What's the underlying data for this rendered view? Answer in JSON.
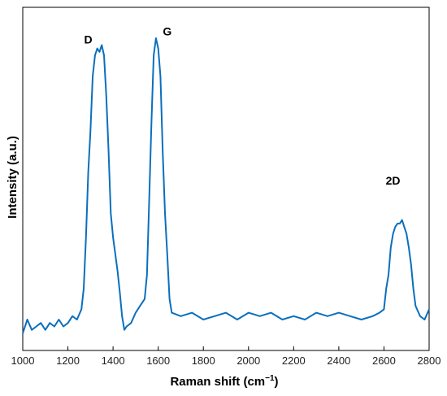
{
  "chart_data": {
    "type": "line",
    "title": "",
    "xlabel": "Raman shift (cm",
    "xlabel_superscript": "−1",
    "xlabel_close": ")",
    "ylabel": "Intensity (a.u.)",
    "xlim": [
      1000,
      2800
    ],
    "ylim": [
      0,
      1
    ],
    "x_ticks": [
      1000,
      1200,
      1400,
      1600,
      1800,
      2000,
      2200,
      2400,
      2600,
      2800
    ],
    "y_ticks_visible": false,
    "grid": false,
    "legend": "none",
    "line_color": "#0a6fbd",
    "annotations": [
      {
        "text": "D",
        "x": 1290,
        "y": 0.895
      },
      {
        "text": "G",
        "x": 1640,
        "y": 0.918
      },
      {
        "text": "2D",
        "x": 2640,
        "y": 0.484
      }
    ],
    "series": [
      {
        "x": [
          1000,
          1020,
          1040,
          1060,
          1080,
          1100,
          1120,
          1140,
          1160,
          1180,
          1200,
          1220,
          1240,
          1260,
          1270,
          1280,
          1290,
          1300,
          1310,
          1320,
          1330,
          1340,
          1350,
          1360,
          1370,
          1380,
          1390,
          1400,
          1410,
          1420,
          1430,
          1440,
          1450,
          1460,
          1480,
          1500,
          1520,
          1540,
          1550,
          1560,
          1570,
          1580,
          1590,
          1600,
          1610,
          1620,
          1630,
          1640,
          1650,
          1660,
          1700,
          1750,
          1800,
          1850,
          1900,
          1950,
          2000,
          2050,
          2100,
          2150,
          2200,
          2250,
          2300,
          2350,
          2400,
          2450,
          2500,
          2550,
          2580,
          2600,
          2610,
          2620,
          2630,
          2640,
          2650,
          2660,
          2670,
          2680,
          2690,
          2700,
          2710,
          2720,
          2730,
          2740,
          2760,
          2780,
          2800
        ],
        "y": [
          0.05,
          0.09,
          0.06,
          0.07,
          0.08,
          0.06,
          0.08,
          0.07,
          0.09,
          0.07,
          0.08,
          0.1,
          0.09,
          0.12,
          0.18,
          0.33,
          0.52,
          0.64,
          0.8,
          0.86,
          0.88,
          0.87,
          0.89,
          0.86,
          0.74,
          0.58,
          0.4,
          0.33,
          0.28,
          0.23,
          0.17,
          0.1,
          0.06,
          0.07,
          0.08,
          0.11,
          0.13,
          0.15,
          0.22,
          0.44,
          0.66,
          0.86,
          0.91,
          0.88,
          0.8,
          0.58,
          0.4,
          0.28,
          0.15,
          0.11,
          0.1,
          0.11,
          0.09,
          0.1,
          0.11,
          0.09,
          0.11,
          0.1,
          0.11,
          0.09,
          0.1,
          0.09,
          0.11,
          0.1,
          0.11,
          0.1,
          0.09,
          0.1,
          0.11,
          0.12,
          0.18,
          0.22,
          0.3,
          0.34,
          0.36,
          0.37,
          0.37,
          0.38,
          0.36,
          0.34,
          0.3,
          0.25,
          0.18,
          0.13,
          0.1,
          0.09,
          0.12
        ]
      }
    ]
  }
}
